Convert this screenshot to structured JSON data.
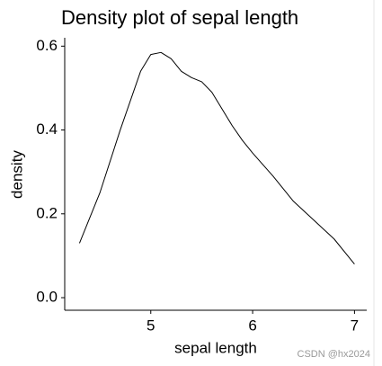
{
  "chart_data": {
    "type": "line",
    "title": "Density plot of sepal length",
    "x_label": "sepal length",
    "y_label": "density",
    "watermark": "CSDN @hx2024",
    "x": [
      4.3,
      4.5,
      4.7,
      4.9,
      5.0,
      5.1,
      5.2,
      5.3,
      5.4,
      5.5,
      5.6,
      5.7,
      5.8,
      5.9,
      6.0,
      6.2,
      6.4,
      6.6,
      6.8,
      7.0
    ],
    "y": [
      0.13,
      0.25,
      0.4,
      0.54,
      0.58,
      0.585,
      0.57,
      0.54,
      0.525,
      0.515,
      0.49,
      0.45,
      0.41,
      0.375,
      0.345,
      0.29,
      0.23,
      0.185,
      0.14,
      0.08
    ],
    "color": "#000000",
    "xlim": [
      4.155,
      7.12
    ],
    "ylim": [
      -0.03,
      0.62
    ],
    "xticks": [
      5,
      6,
      7
    ],
    "yticks": [
      {
        "value": 0,
        "label": "0.0"
      },
      0.2,
      0.4,
      0.6
    ],
    "grid": false
  }
}
